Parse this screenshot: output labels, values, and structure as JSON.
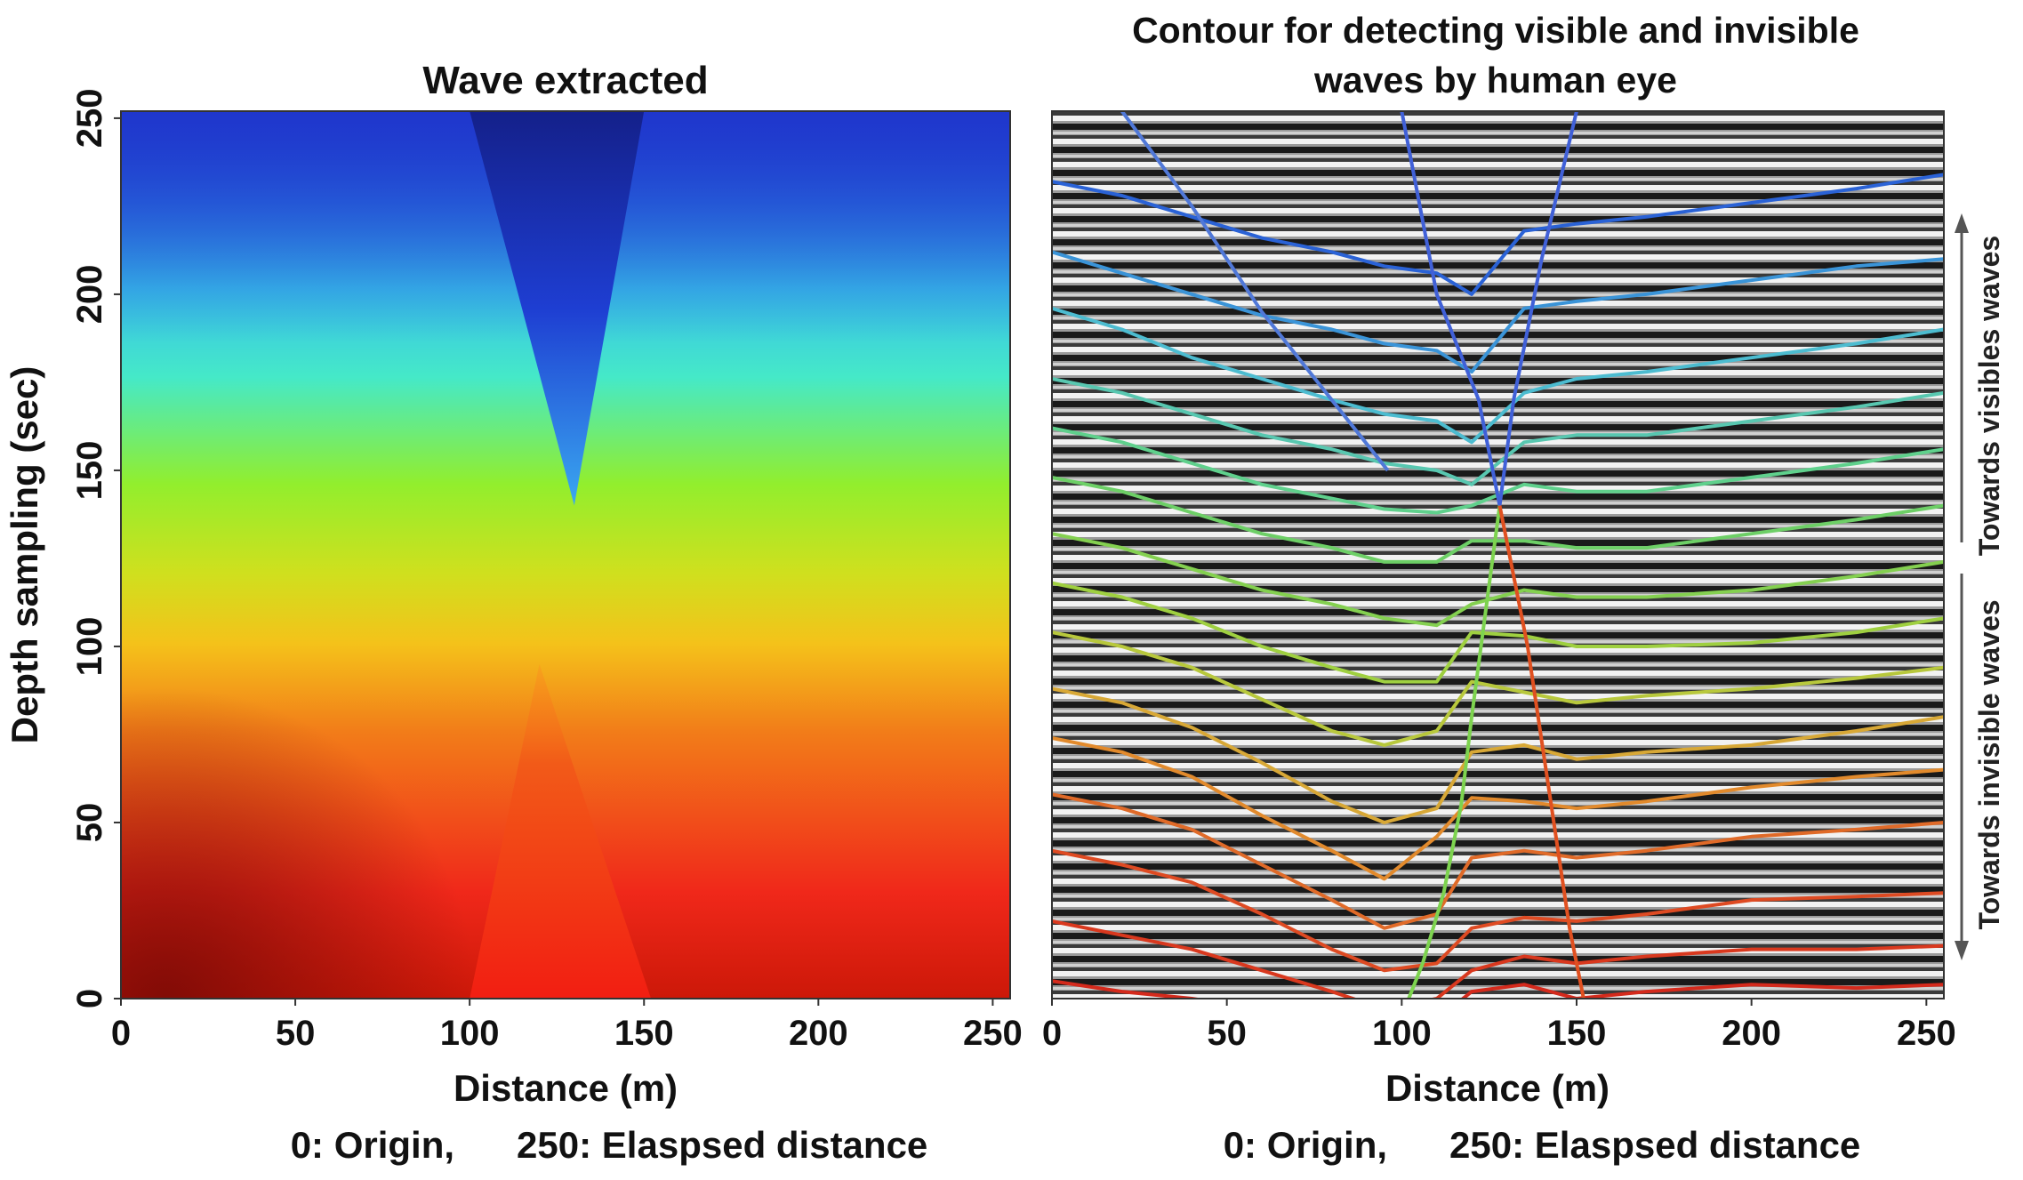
{
  "chart_data": [
    {
      "type": "heatmap",
      "title": "Wave extracted",
      "xlabel": "Distance (m)",
      "ylabel": "Depth sampling (sec)",
      "caption": "0: Origin,      250: Elaspsed distance",
      "xlim": [
        0,
        255
      ],
      "ylim": [
        0,
        252
      ],
      "x_ticks": [
        0,
        50,
        100,
        150,
        200,
        250
      ],
      "y_ticks": [
        0,
        50,
        100,
        150,
        200,
        250
      ],
      "colormap": "jet",
      "color_scale_depth": [
        0,
        40,
        80,
        110,
        150,
        185,
        210,
        252
      ],
      "wedges": [
        {
          "name": "upper-blue-wedge",
          "top_left_x": 100,
          "top_right_x": 150,
          "top_y": 252,
          "apex_x": 130,
          "apex_y": 140,
          "color": "#1d33c6"
        },
        {
          "name": "lower-red-wedge",
          "bottom_left_x": 100,
          "bottom_right_x": 152,
          "bottom_y": 0,
          "apex_x": 120,
          "apex_y": 95,
          "color": "#ee1d12"
        }
      ],
      "grid": false
    },
    {
      "type": "line",
      "title_lines": [
        "Contour for detecting visible and invisible",
        "waves by human eye"
      ],
      "xlabel": "Distance (m)",
      "caption": "0: Origin,      250: Elaspsed distance",
      "xlim": [
        0,
        255
      ],
      "ylim": [
        0,
        252
      ],
      "x_ticks": [
        0,
        50,
        100,
        150,
        200,
        250
      ],
      "background": "grayscale seismic section",
      "side_labels": {
        "upper": "Towards visibles waves",
        "lower": "Towards invisible waves"
      },
      "x": [
        0,
        20,
        40,
        60,
        80,
        95,
        110,
        120,
        135,
        150,
        170,
        200,
        230,
        255
      ],
      "series": [
        {
          "color": "#d42a1c",
          "values": [
            5,
            2,
            0,
            -3,
            -6,
            -8,
            -6,
            2,
            4,
            0,
            2,
            4,
            3,
            4
          ]
        },
        {
          "color": "#d9381e",
          "values": [
            22,
            18,
            14,
            8,
            2,
            -3,
            0,
            8,
            12,
            10,
            12,
            14,
            14,
            15
          ]
        },
        {
          "color": "#de4a22",
          "values": [
            42,
            38,
            33,
            24,
            14,
            8,
            10,
            20,
            23,
            22,
            24,
            28,
            29,
            30
          ]
        },
        {
          "color": "#e06a28",
          "values": [
            58,
            54,
            48,
            38,
            28,
            20,
            24,
            40,
            42,
            40,
            42,
            46,
            48,
            50
          ]
        },
        {
          "color": "#e28a2c",
          "values": [
            74,
            70,
            63,
            52,
            42,
            34,
            46,
            57,
            56,
            54,
            56,
            60,
            63,
            65
          ]
        },
        {
          "color": "#d8a836",
          "values": [
            88,
            84,
            77,
            67,
            56,
            50,
            54,
            70,
            72,
            68,
            70,
            72,
            76,
            80
          ]
        },
        {
          "color": "#b8c83c",
          "values": [
            104,
            100,
            94,
            85,
            76,
            72,
            76,
            90,
            87,
            84,
            86,
            88,
            91,
            94
          ]
        },
        {
          "color": "#9fd040",
          "values": [
            118,
            114,
            108,
            100,
            94,
            90,
            90,
            104,
            103,
            100,
            100,
            101,
            104,
            108
          ]
        },
        {
          "color": "#84d050",
          "values": [
            132,
            128,
            122,
            116,
            112,
            108,
            106,
            112,
            116,
            114,
            114,
            116,
            120,
            124
          ]
        },
        {
          "color": "#6dcf66",
          "values": [
            148,
            144,
            138,
            132,
            128,
            124,
            124,
            130,
            130,
            128,
            128,
            132,
            136,
            140
          ]
        },
        {
          "color": "#5fd08c",
          "values": [
            162,
            158,
            152,
            146,
            142,
            139,
            138,
            140,
            146,
            144,
            144,
            148,
            152,
            156
          ]
        },
        {
          "color": "#58c7b0",
          "values": [
            176,
            172,
            166,
            160,
            156,
            152,
            150,
            146,
            158,
            160,
            160,
            164,
            168,
            172
          ]
        },
        {
          "color": "#4cbcd0",
          "values": [
            196,
            190,
            182,
            176,
            170,
            166,
            164,
            158,
            172,
            176,
            178,
            182,
            186,
            190
          ]
        },
        {
          "color": "#3a94d8",
          "values": [
            212,
            206,
            200,
            194,
            190,
            186,
            184,
            178,
            196,
            198,
            200,
            204,
            208,
            210
          ]
        },
        {
          "color": "#2a62d6",
          "values": [
            232,
            228,
            222,
            216,
            212,
            208,
            206,
            200,
            218,
            220,
            222,
            226,
            230,
            234
          ]
        }
      ],
      "faults": [
        {
          "color": "#5078d8",
          "x": [
            20,
            40,
            60,
            80,
            96
          ],
          "y": [
            252,
            225,
            195,
            170,
            150
          ]
        },
        {
          "color": "#4060d8",
          "x": [
            100,
            110,
            122,
            128,
            132,
            140,
            150
          ],
          "y": [
            252,
            200,
            170,
            140,
            170,
            210,
            252
          ]
        },
        {
          "color": "#7dd34f",
          "x": [
            128,
            124,
            120,
            117,
            112,
            106,
            102
          ],
          "y": [
            140,
            110,
            80,
            55,
            30,
            10,
            0
          ]
        },
        {
          "color": "#e05020",
          "x": [
            128,
            136,
            142,
            148,
            152
          ],
          "y": [
            140,
            100,
            60,
            20,
            0
          ]
        }
      ],
      "grid": false
    }
  ]
}
